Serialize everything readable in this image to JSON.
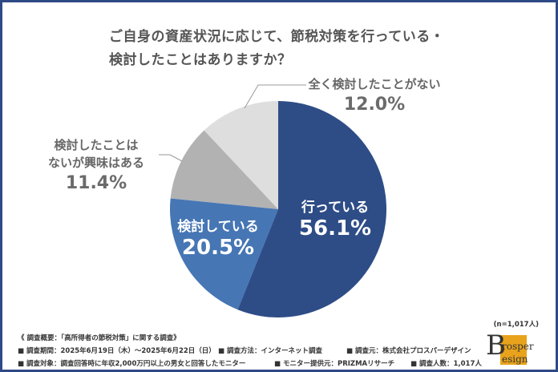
{
  "title": {
    "line1": "ご自身の資産状況に応じて、節税対策を行っている・",
    "line2": "検討したことはありますか？"
  },
  "chart_data": {
    "type": "pie",
    "title": "ご自身の資産状況に応じて、節税対策を行っている・検討したことはありますか？",
    "categories": [
      "行っている",
      "検討している",
      "検討したことはないが興味はある",
      "全く検討したことがない"
    ],
    "values": [
      56.1,
      20.5,
      11.4,
      12.0
    ],
    "labels": [
      "56.1%",
      "20.5%",
      "11.4%",
      "12.0%"
    ],
    "colors": [
      "#2E4D87",
      "#4676B4",
      "#B2B2B2",
      "#DEDEDE"
    ],
    "start": "top",
    "direction": "clockwise"
  },
  "labels": {
    "doing": {
      "text": "行っている",
      "pct": "56.1%"
    },
    "considering": {
      "text": "検討している",
      "pct": "20.5%"
    },
    "interested": {
      "text1": "検討したことは",
      "text2": "ないが興味はある",
      "pct": "11.4%"
    },
    "never": {
      "text": "全く検討したことがない",
      "pct": "12.0%"
    }
  },
  "sample": "(n=1,017人)",
  "footer": {
    "heading": "《 調査概要：「高所得者の節税対策」に関する調査》",
    "period": "■ 調査期間：2025年6月19日（木）～2025年6月22日（日）",
    "method": "■ 調査方法：インターネット調査",
    "org": "■ 調査元：株式会社プロスパーデザイン",
    "target": "■ 調査対象：調査回答時に年収2,000万円以上の男女と回答したモニター",
    "provider": "■ モニター提供元：PRIZMAリサーチ",
    "count": "■ 調査人数：1,017人"
  },
  "logo": {
    "text": "Prosper Design"
  }
}
